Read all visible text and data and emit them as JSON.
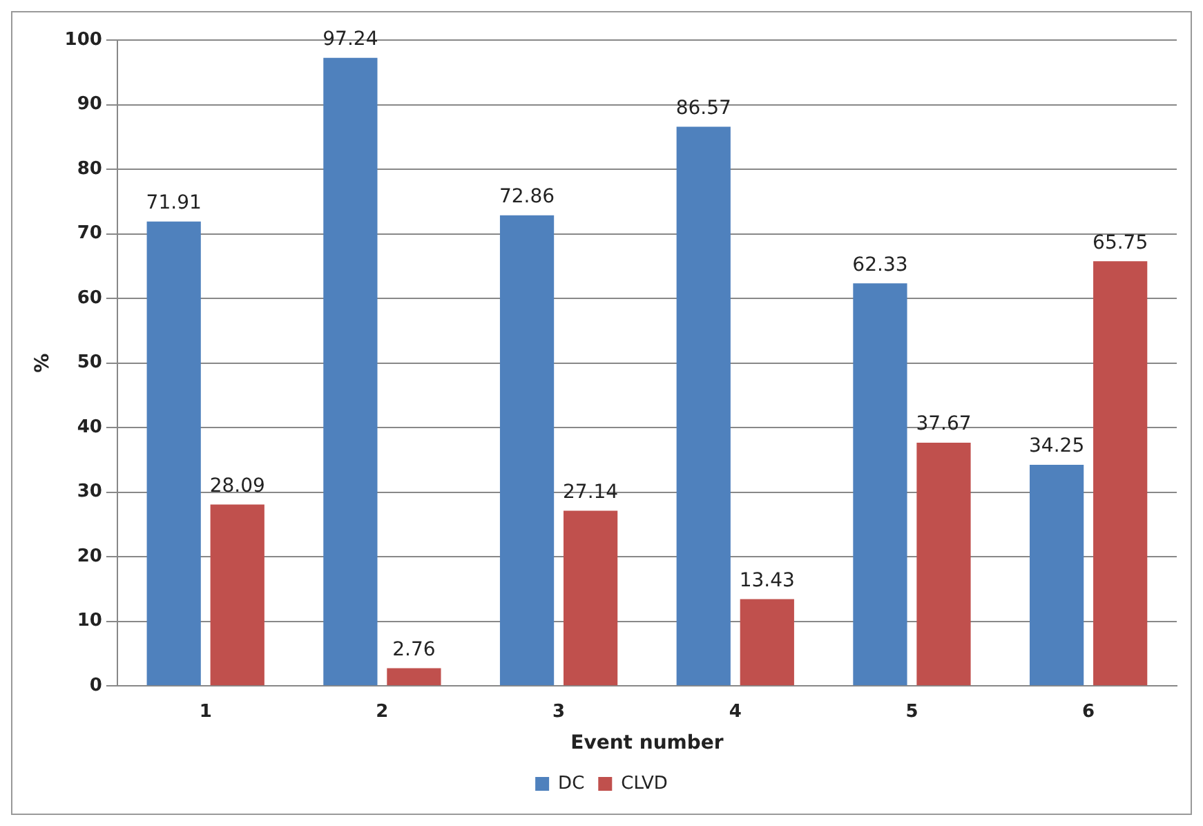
{
  "chart_data": {
    "type": "bar",
    "xlabel": "Event number",
    "ylabel": "%",
    "categories": [
      "1",
      "2",
      "3",
      "4",
      "5",
      "6"
    ],
    "series": [
      {
        "name": "DC",
        "color": "#4f81bd",
        "values": [
          71.91,
          97.24,
          72.86,
          86.57,
          62.33,
          34.25
        ]
      },
      {
        "name": "CLVD",
        "color": "#c0504d",
        "values": [
          28.09,
          2.76,
          27.14,
          13.43,
          37.67,
          65.75
        ]
      }
    ],
    "ylim": [
      0,
      100
    ],
    "yticks": [
      0,
      10,
      20,
      30,
      40,
      50,
      60,
      70,
      80,
      90,
      100
    ],
    "grid": "y",
    "legend": "bottom",
    "data_labels": true
  }
}
